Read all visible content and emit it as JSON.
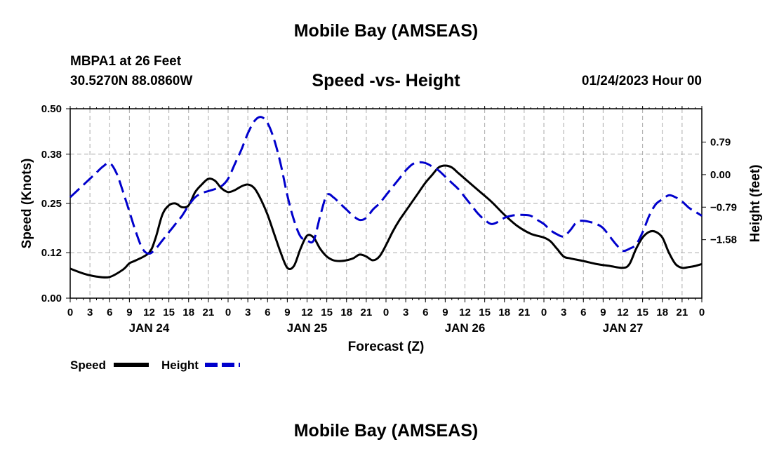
{
  "header": {
    "title": "Mobile Bay (AMSEAS)",
    "station": "MBPA1 at 26 Feet",
    "position": "30.5270N  88.0860W",
    "chart_title": "Speed -vs- Height",
    "run_time": "01/24/2023 Hour 00"
  },
  "footer": {
    "title": "Mobile Bay (AMSEAS)"
  },
  "colors": {
    "speed": "#000000",
    "height": "#0000cc",
    "grid": "#aaaaaa"
  },
  "chart_data": {
    "type": "line",
    "title": "Speed -vs- Height",
    "xlabel": "Forecast (Z)",
    "ylabel": "Speed (Knots)",
    "y2label": "Height (feet)",
    "xlim": [
      0,
      96
    ],
    "ylim": [
      0,
      0.5
    ],
    "y2lim": [
      -3.0,
      1.6
    ],
    "y_ticks": [
      0.0,
      0.12,
      0.25,
      0.38,
      0.5
    ],
    "y_tick_labels": [
      "0.00",
      "0.12",
      "0.25",
      "0.38",
      "0.50"
    ],
    "y2_ticks": [
      0.79,
      0.0,
      -0.79,
      -1.58
    ],
    "y2_tick_labels": [
      "0.79",
      "0.00",
      "−0.79",
      "−1.58"
    ],
    "x_ticks": [
      0,
      3,
      6,
      9,
      12,
      15,
      18,
      21,
      24,
      27,
      30,
      33,
      36,
      39,
      42,
      45,
      48,
      51,
      54,
      57,
      60,
      63,
      66,
      69,
      72,
      75,
      78,
      81,
      84,
      87,
      90,
      93,
      96
    ],
    "x_tick_labels": [
      "0",
      "3",
      "6",
      "9",
      "12",
      "15",
      "18",
      "21",
      "0",
      "3",
      "6",
      "9",
      "12",
      "15",
      "18",
      "21",
      "0",
      "3",
      "6",
      "9",
      "12",
      "15",
      "18",
      "21",
      "0",
      "3",
      "6",
      "9",
      "12",
      "15",
      "18",
      "21",
      "0"
    ],
    "day_labels": [
      {
        "hour": 12,
        "label": "JAN 24"
      },
      {
        "hour": 36,
        "label": "JAN 25"
      },
      {
        "hour": 60,
        "label": "JAN 26"
      },
      {
        "hour": 84,
        "label": "JAN 27"
      }
    ],
    "grid": true,
    "series": [
      {
        "name": "Speed",
        "axis": "left",
        "style": "solid",
        "points": [
          [
            0,
            0.078
          ],
          [
            2,
            0.065
          ],
          [
            4,
            0.057
          ],
          [
            6,
            0.056
          ],
          [
            8,
            0.075
          ],
          [
            9,
            0.092
          ],
          [
            10,
            0.1
          ],
          [
            12,
            0.12
          ],
          [
            13,
            0.16
          ],
          [
            14,
            0.22
          ],
          [
            15,
            0.245
          ],
          [
            16,
            0.25
          ],
          [
            17,
            0.24
          ],
          [
            18,
            0.245
          ],
          [
            19,
            0.28
          ],
          [
            20,
            0.3
          ],
          [
            21,
            0.315
          ],
          [
            22,
            0.31
          ],
          [
            23,
            0.29
          ],
          [
            24,
            0.28
          ],
          [
            25,
            0.285
          ],
          [
            26,
            0.295
          ],
          [
            27,
            0.3
          ],
          [
            28,
            0.29
          ],
          [
            29,
            0.26
          ],
          [
            30,
            0.22
          ],
          [
            31,
            0.17
          ],
          [
            32,
            0.12
          ],
          [
            33,
            0.08
          ],
          [
            34,
            0.085
          ],
          [
            35,
            0.13
          ],
          [
            36,
            0.165
          ],
          [
            37,
            0.16
          ],
          [
            38,
            0.13
          ],
          [
            39,
            0.11
          ],
          [
            40,
            0.1
          ],
          [
            41,
            0.098
          ],
          [
            42,
            0.1
          ],
          [
            43,
            0.105
          ],
          [
            44,
            0.115
          ],
          [
            45,
            0.11
          ],
          [
            46,
            0.1
          ],
          [
            47,
            0.11
          ],
          [
            48,
            0.14
          ],
          [
            49,
            0.175
          ],
          [
            50,
            0.205
          ],
          [
            51,
            0.23
          ],
          [
            52,
            0.255
          ],
          [
            53,
            0.28
          ],
          [
            54,
            0.305
          ],
          [
            55,
            0.325
          ],
          [
            56,
            0.345
          ],
          [
            57,
            0.35
          ],
          [
            58,
            0.345
          ],
          [
            59,
            0.33
          ],
          [
            60,
            0.315
          ],
          [
            62,
            0.285
          ],
          [
            64,
            0.255
          ],
          [
            66,
            0.22
          ],
          [
            68,
            0.19
          ],
          [
            70,
            0.17
          ],
          [
            72,
            0.16
          ],
          [
            73,
            0.15
          ],
          [
            74,
            0.13
          ],
          [
            75,
            0.11
          ],
          [
            76,
            0.105
          ],
          [
            78,
            0.098
          ],
          [
            80,
            0.09
          ],
          [
            82,
            0.085
          ],
          [
            84,
            0.08
          ],
          [
            85,
            0.09
          ],
          [
            86,
            0.13
          ],
          [
            87,
            0.16
          ],
          [
            88,
            0.175
          ],
          [
            89,
            0.175
          ],
          [
            90,
            0.16
          ],
          [
            91,
            0.12
          ],
          [
            92,
            0.09
          ],
          [
            93,
            0.08
          ],
          [
            94,
            0.082
          ],
          [
            95,
            0.085
          ],
          [
            96,
            0.09
          ]
        ]
      },
      {
        "name": "Height",
        "axis": "right",
        "style": "dashed",
        "points": [
          [
            0,
            -0.55
          ],
          [
            1,
            -0.4
          ],
          [
            2,
            -0.25
          ],
          [
            3,
            -0.1
          ],
          [
            4,
            0.05
          ],
          [
            5,
            0.2
          ],
          [
            6,
            0.28
          ],
          [
            7,
            0.05
          ],
          [
            8,
            -0.4
          ],
          [
            9,
            -0.9
          ],
          [
            10,
            -1.4
          ],
          [
            11,
            -1.8
          ],
          [
            12,
            -1.92
          ],
          [
            13,
            -1.8
          ],
          [
            14,
            -1.6
          ],
          [
            15,
            -1.4
          ],
          [
            16,
            -1.2
          ],
          [
            17,
            -1.0
          ],
          [
            18,
            -0.75
          ],
          [
            19,
            -0.55
          ],
          [
            20,
            -0.45
          ],
          [
            21,
            -0.4
          ],
          [
            22,
            -0.35
          ],
          [
            23,
            -0.28
          ],
          [
            24,
            -0.1
          ],
          [
            25,
            0.25
          ],
          [
            26,
            0.6
          ],
          [
            27,
            1.0
          ],
          [
            28,
            1.3
          ],
          [
            29,
            1.4
          ],
          [
            30,
            1.25
          ],
          [
            31,
            0.85
          ],
          [
            32,
            0.25
          ],
          [
            33,
            -0.5
          ],
          [
            34,
            -1.1
          ],
          [
            35,
            -1.5
          ],
          [
            36,
            -1.6
          ],
          [
            37,
            -1.6
          ],
          [
            38,
            -1.0
          ],
          [
            39,
            -0.5
          ],
          [
            40,
            -0.55
          ],
          [
            41,
            -0.7
          ],
          [
            42,
            -0.85
          ],
          [
            43,
            -1.0
          ],
          [
            44,
            -1.1
          ],
          [
            45,
            -1.05
          ],
          [
            46,
            -0.85
          ],
          [
            47,
            -0.7
          ],
          [
            48,
            -0.5
          ],
          [
            49,
            -0.3
          ],
          [
            50,
            -0.1
          ],
          [
            51,
            0.1
          ],
          [
            52,
            0.25
          ],
          [
            53,
            0.3
          ],
          [
            54,
            0.28
          ],
          [
            55,
            0.2
          ],
          [
            56,
            0.1
          ],
          [
            57,
            -0.05
          ],
          [
            58,
            -0.2
          ],
          [
            59,
            -0.35
          ],
          [
            60,
            -0.55
          ],
          [
            61,
            -0.75
          ],
          [
            62,
            -0.95
          ],
          [
            63,
            -1.1
          ],
          [
            64,
            -1.2
          ],
          [
            65,
            -1.15
          ],
          [
            66,
            -1.05
          ],
          [
            67,
            -1.0
          ],
          [
            68,
            -0.98
          ],
          [
            69,
            -0.98
          ],
          [
            70,
            -1.0
          ],
          [
            71,
            -1.1
          ],
          [
            72,
            -1.2
          ],
          [
            73,
            -1.35
          ],
          [
            74,
            -1.45
          ],
          [
            75,
            -1.5
          ],
          [
            76,
            -1.35
          ],
          [
            77,
            -1.15
          ],
          [
            78,
            -1.12
          ],
          [
            79,
            -1.15
          ],
          [
            80,
            -1.2
          ],
          [
            81,
            -1.3
          ],
          [
            82,
            -1.5
          ],
          [
            83,
            -1.7
          ],
          [
            84,
            -1.85
          ],
          [
            85,
            -1.8
          ],
          [
            86,
            -1.7
          ],
          [
            87,
            -1.4
          ],
          [
            88,
            -1.0
          ],
          [
            89,
            -0.72
          ],
          [
            90,
            -0.6
          ],
          [
            91,
            -0.5
          ],
          [
            92,
            -0.55
          ],
          [
            93,
            -0.65
          ],
          [
            94,
            -0.8
          ],
          [
            95,
            -0.9
          ],
          [
            96,
            -1.0
          ]
        ]
      }
    ],
    "legend": [
      {
        "label": "Speed",
        "style": "solid"
      },
      {
        "label": "Height",
        "style": "dashed"
      }
    ],
    "legend_position": "bottom-left"
  }
}
